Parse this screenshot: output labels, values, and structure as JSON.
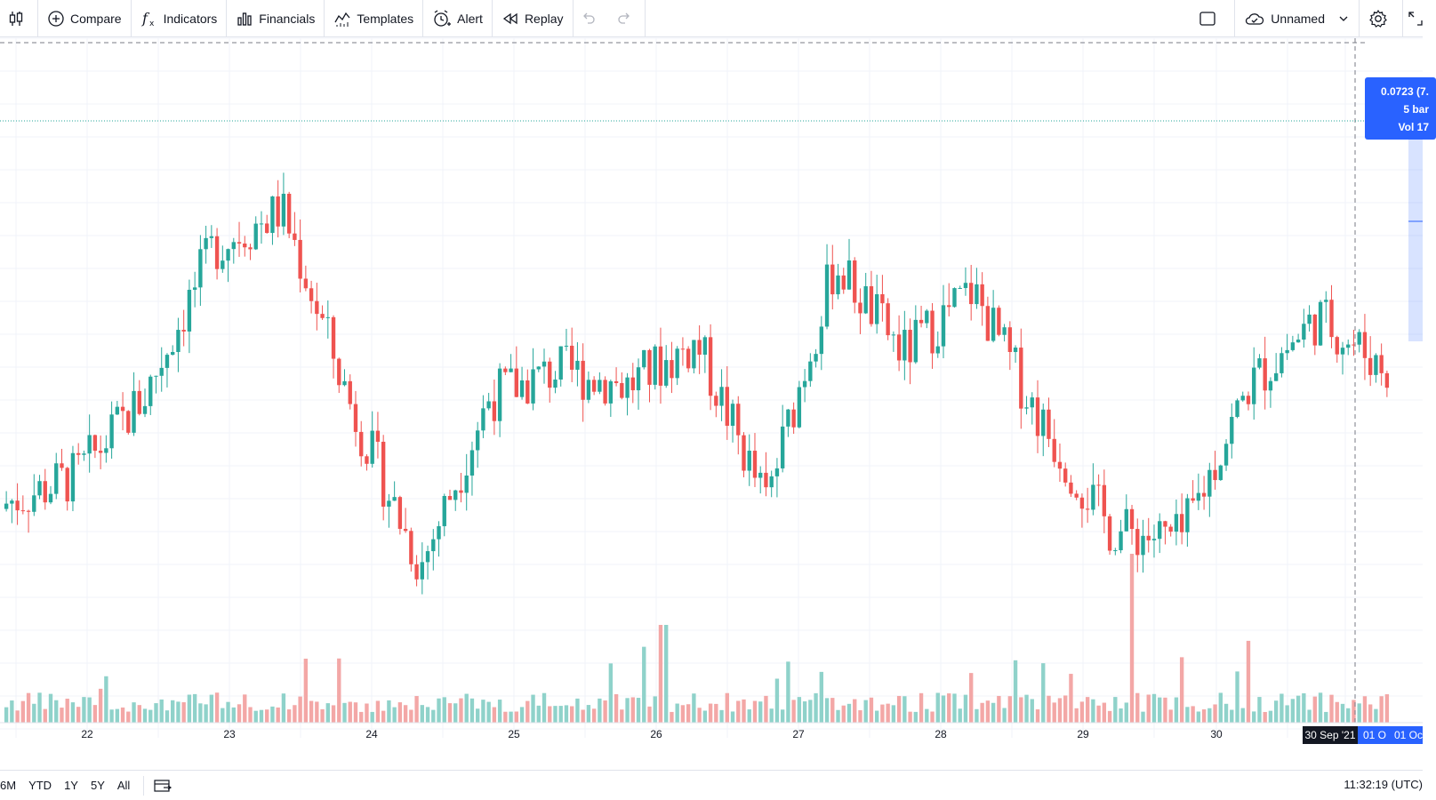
{
  "toolbar": {
    "compare": "Compare",
    "indicators": "Indicators",
    "financials": "Financials",
    "templates": "Templates",
    "alert": "Alert",
    "replay": "Replay",
    "layout_name": "Unnamed"
  },
  "tooltip": {
    "line1": "0.0723 (7.",
    "line2": "5 bar",
    "line3": "Vol 17"
  },
  "time_axis": {
    "labels": [
      "22",
      "23",
      "24",
      "25",
      "26",
      "27",
      "28",
      "29",
      "30"
    ],
    "highlight_1": "30 Sep '21",
    "highlight_2": "01 O",
    "highlight_3": "01 Oc"
  },
  "ranges": [
    "6M",
    "YTD",
    "1Y",
    "5Y",
    "All"
  ],
  "clock": "11:32:19 (UTC)",
  "colors": {
    "up": "#26a69a",
    "down": "#ef5350",
    "up_vol": "#8fd2ca",
    "down_vol": "#f3a7a6",
    "accent": "#2962ff",
    "grid": "#f0f3fa"
  },
  "chart_data": {
    "type": "candlestick",
    "x": [
      "22",
      "23",
      "24",
      "25",
      "26",
      "27",
      "28",
      "29",
      "30"
    ],
    "close_path": [
      40,
      45,
      60,
      88,
      95,
      58,
      28,
      60,
      65,
      62,
      70,
      40,
      85,
      68,
      80,
      55,
      35,
      33,
      62,
      75,
      65
    ]
  }
}
